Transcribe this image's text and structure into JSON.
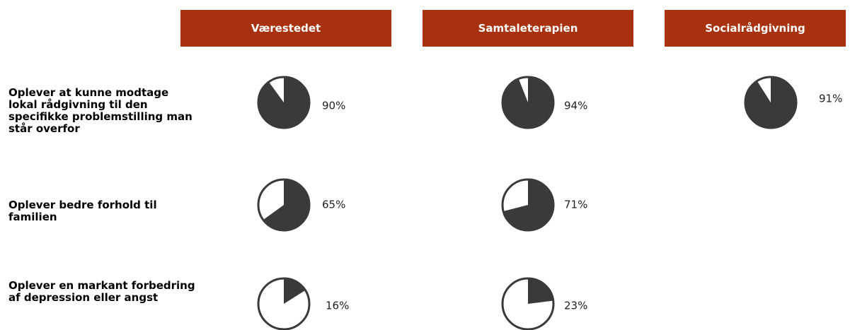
{
  "chart_data": {
    "type": "pie",
    "columns": [
      "Værestedet",
      "Samtaleterapien",
      "Socialrådgivning"
    ],
    "rows": [
      "Oplever at kunne modtage lokal rådgivning til den specifikke problemstilling man står overfor",
      "Oplever bedre forhold til familien",
      "Oplever en markant forbedring af depression eller angst"
    ],
    "values": [
      [
        90,
        94,
        91
      ],
      [
        65,
        71,
        null
      ],
      [
        16,
        23,
        null
      ]
    ],
    "value_labels": [
      [
        "90%",
        "94%",
        "91%"
      ],
      [
        "65%",
        "71%",
        null
      ],
      [
        "16%",
        "23%",
        null
      ]
    ],
    "color": "#3a3a3a",
    "header_color": "#a8320f"
  }
}
